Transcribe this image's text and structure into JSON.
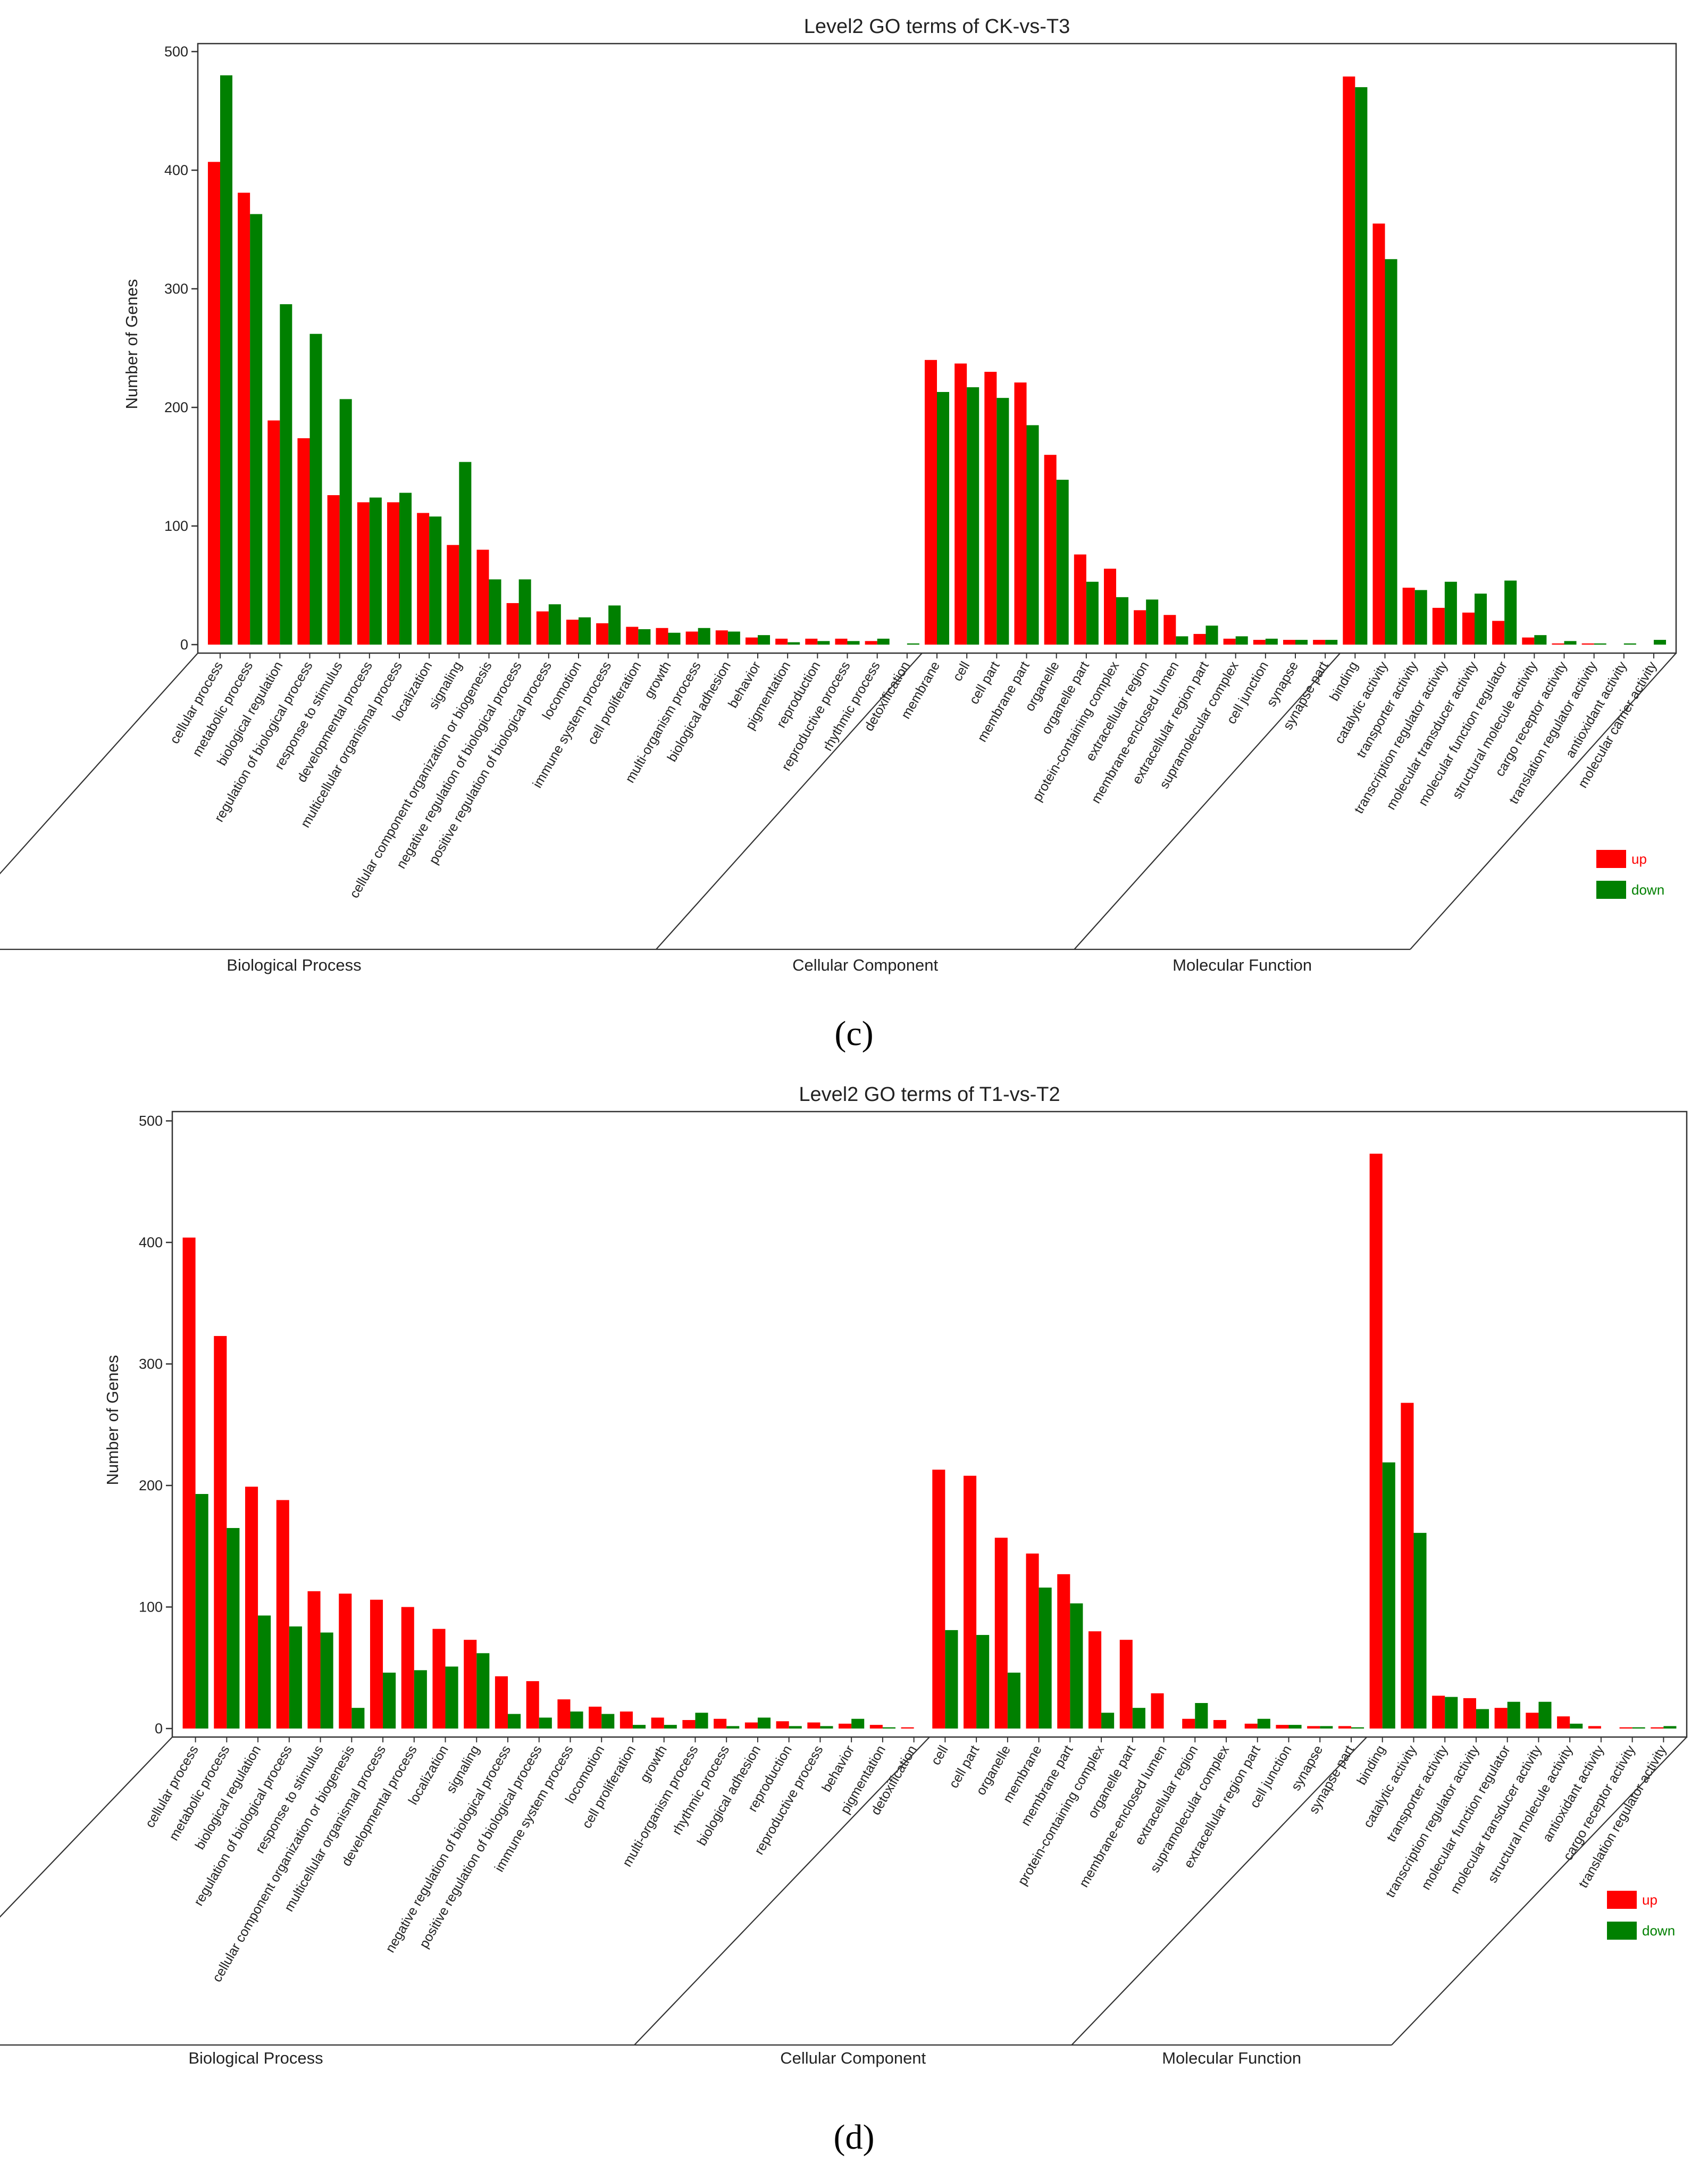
{
  "colors": {
    "up": "#ff0000",
    "down": "#008000"
  },
  "chart_data": [
    {
      "type": "bar",
      "panel_label": "(c)",
      "title": "Level2 GO terms of CK-vs-T3",
      "ylabel": "Number of Genes",
      "yticks": [
        0,
        100,
        200,
        300,
        400,
        500
      ],
      "ylim": [
        0,
        500
      ],
      "legend": {
        "up": "up",
        "down": "down"
      },
      "groups": [
        {
          "name": "Biological Process",
          "categories": [
            "cellular process",
            "metabolic process",
            "biological regulation",
            "regulation of biological process",
            "response to stimulus",
            "developmental process",
            "multicellular organismal process",
            "localization",
            "signaling",
            "cellular component organization or biogenesis",
            "negative regulation of biological process",
            "positive regulation of biological process",
            "locomotion",
            "immune system process",
            "cell proliferation",
            "growth",
            "multi-organism process",
            "biological adhesion",
            "behavior",
            "pigmentation",
            "reproduction",
            "reproductive process",
            "rhythmic process",
            "detoxification"
          ],
          "up": [
            407,
            381,
            189,
            174,
            126,
            120,
            120,
            111,
            84,
            80,
            35,
            28,
            21,
            18,
            15,
            14,
            11,
            12,
            6,
            5,
            5,
            5,
            3,
            0
          ],
          "down": [
            480,
            363,
            287,
            262,
            207,
            124,
            128,
            108,
            154,
            55,
            55,
            34,
            23,
            33,
            13,
            10,
            14,
            11,
            8,
            2,
            3,
            3,
            5,
            1
          ]
        },
        {
          "name": "Cellular Component",
          "categories": [
            "membrane",
            "cell",
            "cell part",
            "membrane part",
            "organelle",
            "organelle part",
            "protein-containing complex",
            "extracellular region",
            "membrane-enclosed lumen",
            "extracellular region part",
            "supramolecular complex",
            "cell junction",
            "synapse",
            "synapse part"
          ],
          "up": [
            240,
            237,
            230,
            221,
            160,
            76,
            64,
            29,
            25,
            9,
            5,
            4,
            4,
            4
          ],
          "down": [
            213,
            217,
            208,
            185,
            139,
            53,
            40,
            38,
            7,
            16,
            7,
            5,
            4,
            4
          ]
        },
        {
          "name": "Molecular Function",
          "categories": [
            "binding",
            "catalytic activity",
            "transporter activity",
            "transcription regulator activity",
            "molecular transducer activity",
            "molecular function regulator",
            "structural molecule activity",
            "cargo receptor activity",
            "translation regulator activity",
            "antioxidant activity",
            "molecular carrier activity"
          ],
          "up": [
            479,
            355,
            48,
            31,
            27,
            20,
            6,
            1,
            1,
            0,
            0
          ],
          "down": [
            470,
            325,
            46,
            53,
            43,
            54,
            8,
            3,
            1,
            1,
            4
          ]
        }
      ]
    },
    {
      "type": "bar",
      "panel_label": "(d)",
      "title": "Level2 GO terms of T1-vs-T2",
      "ylabel": "Number of Genes",
      "yticks": [
        0,
        100,
        200,
        300,
        400,
        500
      ],
      "ylim": [
        0,
        500
      ],
      "legend": {
        "up": "up",
        "down": "down"
      },
      "groups": [
        {
          "name": "Biological Process",
          "categories": [
            "cellular process",
            "metabolic process",
            "biological regulation",
            "regulation of biological process",
            "response to stimulus",
            "cellular component organization or biogenesis",
            "multicellular organismal process",
            "developmental process",
            "localization",
            "signaling",
            "negative regulation of biological process",
            "positive regulation of biological process",
            "immune system process",
            "locomotion",
            "cell proliferation",
            "growth",
            "multi-organism process",
            "rhythmic process",
            "biological adhesion",
            "reproduction",
            "reproductive process",
            "behavior",
            "pigmentation",
            "detoxification"
          ],
          "up": [
            404,
            323,
            199,
            188,
            113,
            111,
            106,
            100,
            82,
            73,
            43,
            39,
            24,
            18,
            14,
            9,
            7,
            8,
            5,
            6,
            5,
            4,
            3,
            1
          ],
          "down": [
            193,
            165,
            93,
            84,
            79,
            17,
            46,
            48,
            51,
            62,
            12,
            9,
            14,
            12,
            3,
            3,
            13,
            2,
            9,
            2,
            2,
            8,
            1,
            0
          ]
        },
        {
          "name": "Cellular Component",
          "categories": [
            "cell",
            "cell part",
            "organelle",
            "membrane",
            "membrane part",
            "protein-containing complex",
            "organelle part",
            "membrane-enclosed lumen",
            "extracellular region",
            "supramolecular complex",
            "extracellular region part",
            "cell junction",
            "synapse",
            "synapse part"
          ],
          "up": [
            213,
            208,
            157,
            144,
            127,
            80,
            73,
            29,
            8,
            7,
            4,
            3,
            2,
            2
          ],
          "down": [
            81,
            77,
            46,
            116,
            103,
            13,
            17,
            0,
            21,
            0,
            8,
            3,
            2,
            1
          ]
        },
        {
          "name": "Molecular Function",
          "categories": [
            "binding",
            "catalytic activity",
            "transporter activity",
            "transcription regulator activity",
            "molecular function regulator",
            "molecular transducer activity",
            "structural molecule activity",
            "antioxidant activity",
            "cargo receptor activity",
            "translation regulator activity"
          ],
          "up": [
            473,
            268,
            27,
            25,
            17,
            13,
            10,
            2,
            1,
            1
          ],
          "down": [
            219,
            161,
            26,
            16,
            22,
            22,
            4,
            0,
            1,
            2
          ]
        }
      ]
    }
  ]
}
